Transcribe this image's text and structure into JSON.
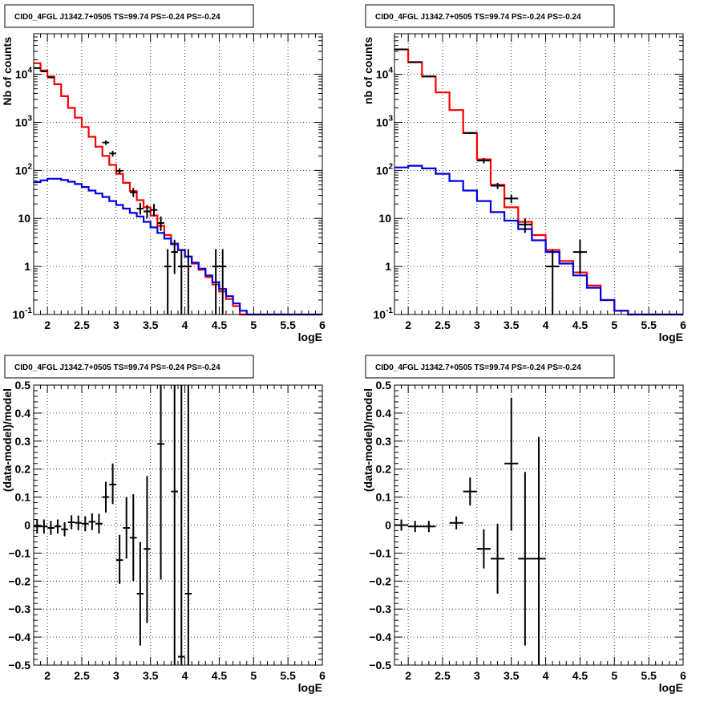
{
  "chart_data": [
    {
      "type": "step-histogram",
      "title": "CID0_4FGL J1342.7+0505 TS=99.74 PS=-0.24 PS=-0.24",
      "xlabel": "logE",
      "ylabel": "Nb of counts",
      "xlim": [
        1.8,
        6.0
      ],
      "ylim": [
        0.1,
        70000
      ],
      "log_y": true,
      "grid": true,
      "x_ticks": [
        "2",
        "2.5",
        "3",
        "3.5",
        "4",
        "4.5",
        "5",
        "5.5",
        "6"
      ],
      "y_ticks": [
        "10^-1",
        "1",
        "10",
        "10^2",
        "10^3",
        "10^4"
      ],
      "bin_edges": [
        1.8,
        1.9,
        2.0,
        2.1,
        2.2,
        2.3,
        2.4,
        2.5,
        2.6,
        2.7,
        2.8,
        2.9,
        3.0,
        3.1,
        3.2,
        3.3,
        3.4,
        3.5,
        3.6,
        3.7,
        3.8,
        3.9,
        4.0,
        4.1,
        4.2,
        4.3,
        4.4,
        4.5,
        4.6,
        4.7,
        4.8,
        4.9,
        5.0,
        5.1,
        5.2,
        5.3,
        5.4,
        5.5,
        5.6,
        5.7,
        5.8,
        5.9,
        6.0
      ],
      "series": [
        {
          "color": "#ff0000",
          "style": "step",
          "values": [
            17000,
            12000,
            9000,
            6200,
            3500,
            2000,
            1250,
            800,
            500,
            310,
            200,
            130,
            85,
            55,
            37,
            24,
            17,
            11.5,
            7,
            4.5,
            3,
            2.2,
            1.6,
            1.15,
            0.85,
            0.6,
            0.42,
            0.3,
            0.21,
            0.15,
            0.1,
            0.1,
            0.1,
            0.1,
            0.1,
            0.1,
            0.1,
            0.1,
            0.1,
            0.1,
            0.1,
            0.1
          ]
        },
        {
          "color": "#0000dd",
          "style": "step",
          "values": [
            57,
            62,
            67,
            67,
            63,
            58,
            52,
            45,
            38,
            33,
            28,
            23,
            19,
            16,
            13,
            11,
            8.5,
            6.5,
            5,
            3.8,
            2.9,
            2.2,
            1.6,
            1.2,
            0.9,
            0.65,
            0.47,
            0.34,
            0.24,
            0.17,
            0.12,
            0.1,
            0.1,
            0.1,
            0.1,
            0.1,
            0.1,
            0.1,
            0.1,
            0.1,
            0.1,
            0.1
          ]
        }
      ],
      "points": [
        {
          "x": 1.85,
          "y": 13500,
          "xerr": 0.05,
          "ylo": 13300,
          "yhi": 13700
        },
        {
          "x": 1.95,
          "y": 11500,
          "xerr": 0.05,
          "ylo": 11300,
          "yhi": 11700
        },
        {
          "x": 2.05,
          "y": 8600,
          "xerr": 0.05,
          "ylo": 8400,
          "yhi": 8800
        },
        {
          "x": 2.85,
          "y": 380,
          "xerr": 0.05,
          "ylo": 340,
          "yhi": 420
        },
        {
          "x": 2.95,
          "y": 225,
          "xerr": 0.05,
          "ylo": 195,
          "yhi": 255
        },
        {
          "x": 3.05,
          "y": 98,
          "xerr": 0.05,
          "ylo": 85,
          "yhi": 110
        },
        {
          "x": 3.25,
          "y": 35,
          "xerr": 0.05,
          "ylo": 28,
          "yhi": 43
        },
        {
          "x": 3.35,
          "y": 16,
          "xerr": 0.05,
          "ylo": 12,
          "yhi": 21
        },
        {
          "x": 3.45,
          "y": 14,
          "xerr": 0.05,
          "ylo": 10,
          "yhi": 19
        },
        {
          "x": 3.55,
          "y": 15,
          "xerr": 0.05,
          "ylo": 11,
          "yhi": 20
        },
        {
          "x": 3.65,
          "y": 8,
          "xerr": 0.05,
          "ylo": 5.5,
          "yhi": 11
        },
        {
          "x": 3.75,
          "y": 1,
          "xerr": 0.05,
          "ylo": 0.1,
          "yhi": 2.3
        },
        {
          "x": 3.85,
          "y": 2,
          "xerr": 0.05,
          "ylo": 0.7,
          "yhi": 3.6
        },
        {
          "x": 3.95,
          "y": 1,
          "xerr": 0.05,
          "ylo": 0.1,
          "yhi": 2.3
        },
        {
          "x": 4.05,
          "y": 1,
          "xerr": 0.05,
          "ylo": 0.1,
          "yhi": 2.3
        },
        {
          "x": 4.45,
          "y": 1,
          "xerr": 0.05,
          "ylo": 0.1,
          "yhi": 2.3
        },
        {
          "x": 4.55,
          "y": 1,
          "xerr": 0.05,
          "ylo": 0.1,
          "yhi": 2.3
        }
      ]
    },
    {
      "type": "step-histogram",
      "title": "CID0_4FGL J1342.7+0505 TS=99.74 PS=-0.24 PS=-0.24",
      "xlabel": "logE",
      "ylabel": "nb of counts",
      "xlim": [
        1.8,
        6.0
      ],
      "ylim": [
        0.1,
        70000
      ],
      "log_y": true,
      "grid": true,
      "x_ticks": [
        "2",
        "2.5",
        "3",
        "3.5",
        "4",
        "4.5",
        "5",
        "5.5",
        "6"
      ],
      "y_ticks": [
        "10^-1",
        "1",
        "10",
        "10^2",
        "10^3",
        "10^4"
      ],
      "bin_edges": [
        1.8,
        2.0,
        2.2,
        2.4,
        2.6,
        2.8,
        3.0,
        3.2,
        3.4,
        3.6,
        3.8,
        4.0,
        4.2,
        4.4,
        4.6,
        4.8,
        5.0,
        5.2,
        5.4,
        5.6,
        5.8,
        6.0
      ],
      "series": [
        {
          "color": "#ff0000",
          "style": "step",
          "values": [
            33000,
            18000,
            9000,
            4200,
            1800,
            600,
            170,
            50,
            17,
            8.5,
            4.5,
            2.2,
            1.3,
            0.75,
            0.4,
            0.2,
            0.12,
            0.1,
            0.1,
            0.1,
            0.1
          ]
        },
        {
          "color": "#0000dd",
          "style": "step",
          "values": [
            115,
            125,
            110,
            85,
            60,
            38,
            23,
            13.5,
            9,
            6,
            3.5,
            2,
            1.15,
            0.65,
            0.36,
            0.2,
            0.12,
            0.1,
            0.1,
            0.1,
            0.1
          ]
        }
      ],
      "points": [
        {
          "x": 1.9,
          "y": 33000,
          "xerr": 0.1,
          "ylo": 32700,
          "yhi": 33300
        },
        {
          "x": 2.1,
          "y": 17800,
          "xerr": 0.1,
          "ylo": 17600,
          "yhi": 18000
        },
        {
          "x": 2.3,
          "y": 9050,
          "xerr": 0.1,
          "ylo": 8900,
          "yhi": 9200
        },
        {
          "x": 2.9,
          "y": 600,
          "xerr": 0.1,
          "ylo": 570,
          "yhi": 630
        },
        {
          "x": 3.1,
          "y": 160,
          "xerr": 0.1,
          "ylo": 140,
          "yhi": 180
        },
        {
          "x": 3.3,
          "y": 48,
          "xerr": 0.1,
          "ylo": 41,
          "yhi": 55
        },
        {
          "x": 3.5,
          "y": 26,
          "xerr": 0.1,
          "ylo": 21,
          "yhi": 31
        },
        {
          "x": 3.7,
          "y": 7.5,
          "xerr": 0.1,
          "ylo": 5,
          "yhi": 10
        },
        {
          "x": 4.1,
          "y": 1,
          "xerr": 0.1,
          "ylo": 0.1,
          "yhi": 2.3
        },
        {
          "x": 4.5,
          "y": 2,
          "xerr": 0.1,
          "ylo": 0.7,
          "yhi": 3.6
        }
      ]
    },
    {
      "type": "scatter",
      "title": "CID0_4FGL J1342.7+0505 TS=99.74 PS=-0.24 PS=-0.24",
      "xlabel": "logE",
      "ylabel": "(data-model)/model",
      "xlim": [
        1.8,
        6.0
      ],
      "ylim": [
        -0.5,
        0.5
      ],
      "grid": true,
      "x_ticks": [
        "2",
        "2.5",
        "3",
        "3.5",
        "4",
        "4.5",
        "5",
        "5.5",
        "6"
      ],
      "y_ticks": [
        "−0.5",
        "−0.4",
        "−0.3",
        "−0.2",
        "−0.1",
        "0",
        "0.1",
        "0.2",
        "0.3",
        "0.4",
        "0.5"
      ],
      "points": [
        {
          "x": 1.85,
          "y": -0.005,
          "xerr": 0.05,
          "ylo": -0.03,
          "yhi": 0.02
        },
        {
          "x": 1.95,
          "y": -0.005,
          "xerr": 0.05,
          "ylo": -0.03,
          "yhi": 0.02
        },
        {
          "x": 2.05,
          "y": -0.01,
          "xerr": 0.05,
          "ylo": -0.035,
          "yhi": 0.015
        },
        {
          "x": 2.15,
          "y": -0.005,
          "xerr": 0.05,
          "ylo": -0.03,
          "yhi": 0.02
        },
        {
          "x": 2.25,
          "y": -0.015,
          "xerr": 0.05,
          "ylo": -0.04,
          "yhi": 0.01
        },
        {
          "x": 2.35,
          "y": 0.01,
          "xerr": 0.05,
          "ylo": -0.015,
          "yhi": 0.035
        },
        {
          "x": 2.45,
          "y": 0.008,
          "xerr": 0.05,
          "ylo": -0.018,
          "yhi": 0.034
        },
        {
          "x": 2.55,
          "y": 0.005,
          "xerr": 0.05,
          "ylo": -0.022,
          "yhi": 0.032
        },
        {
          "x": 2.65,
          "y": 0.012,
          "xerr": 0.05,
          "ylo": -0.018,
          "yhi": 0.042
        },
        {
          "x": 2.75,
          "y": 0.005,
          "xerr": 0.05,
          "ylo": -0.03,
          "yhi": 0.04
        },
        {
          "x": 2.85,
          "y": 0.1,
          "xerr": 0.05,
          "ylo": 0.045,
          "yhi": 0.155
        },
        {
          "x": 2.95,
          "y": 0.145,
          "xerr": 0.05,
          "ylo": 0.075,
          "yhi": 0.22
        },
        {
          "x": 3.05,
          "y": -0.125,
          "xerr": 0.05,
          "ylo": -0.21,
          "yhi": -0.035
        },
        {
          "x": 3.15,
          "y": -0.01,
          "xerr": 0.05,
          "ylo": -0.12,
          "yhi": 0.1
        },
        {
          "x": 3.25,
          "y": -0.045,
          "xerr": 0.05,
          "ylo": -0.2,
          "yhi": 0.11
        },
        {
          "x": 3.35,
          "y": -0.245,
          "xerr": 0.05,
          "ylo": -0.43,
          "yhi": -0.06
        },
        {
          "x": 3.45,
          "y": -0.085,
          "xerr": 0.05,
          "ylo": -0.35,
          "yhi": 0.175
        },
        {
          "x": 3.65,
          "y": 0.29,
          "xerr": 0.05,
          "ylo": -0.195,
          "yhi": 0.5
        },
        {
          "x": 3.85,
          "y": 0.12,
          "xerr": 0.05,
          "ylo": -0.5,
          "yhi": 0.5
        },
        {
          "x": 3.95,
          "y": -0.47,
          "xerr": 0.05,
          "ylo": -0.5,
          "yhi": 0.5
        },
        {
          "x": 4.05,
          "y": -0.245,
          "xerr": 0.05,
          "ylo": -0.5,
          "yhi": 0.5
        }
      ]
    },
    {
      "type": "scatter",
      "title": "CID0_4FGL J1342.7+0505 TS=99.74 PS=-0.24 PS=-0.24",
      "xlabel": "logE",
      "ylabel": "(data-model)/model",
      "xlim": [
        1.8,
        6.0
      ],
      "ylim": [
        -0.5,
        0.5
      ],
      "grid": true,
      "x_ticks": [
        "2",
        "2.5",
        "3",
        "3.5",
        "4",
        "4.5",
        "5",
        "5.5",
        "6"
      ],
      "y_ticks": [
        "−0.5",
        "−0.4",
        "−0.3",
        "−0.2",
        "−0.1",
        "0",
        "0.1",
        "0.2",
        "0.3",
        "0.4",
        "0.5"
      ],
      "points": [
        {
          "x": 1.9,
          "y": 0.0,
          "xerr": 0.1,
          "ylo": -0.02,
          "yhi": 0.02
        },
        {
          "x": 2.1,
          "y": -0.005,
          "xerr": 0.1,
          "ylo": -0.025,
          "yhi": 0.015
        },
        {
          "x": 2.3,
          "y": -0.005,
          "xerr": 0.1,
          "ylo": -0.025,
          "yhi": 0.015
        },
        {
          "x": 2.7,
          "y": 0.008,
          "xerr": 0.1,
          "ylo": -0.015,
          "yhi": 0.031
        },
        {
          "x": 2.9,
          "y": 0.12,
          "xerr": 0.1,
          "ylo": 0.07,
          "yhi": 0.17
        },
        {
          "x": 3.1,
          "y": -0.085,
          "xerr": 0.1,
          "ylo": -0.155,
          "yhi": -0.015
        },
        {
          "x": 3.3,
          "y": -0.12,
          "xerr": 0.1,
          "ylo": -0.245,
          "yhi": 0.005
        },
        {
          "x": 3.5,
          "y": 0.22,
          "xerr": 0.1,
          "ylo": -0.02,
          "yhi": 0.455
        },
        {
          "x": 3.7,
          "y": -0.12,
          "xerr": 0.1,
          "ylo": -0.43,
          "yhi": 0.19
        },
        {
          "x": 3.9,
          "y": -0.12,
          "xerr": 0.1,
          "ylo": -0.5,
          "yhi": 0.315
        }
      ]
    }
  ]
}
